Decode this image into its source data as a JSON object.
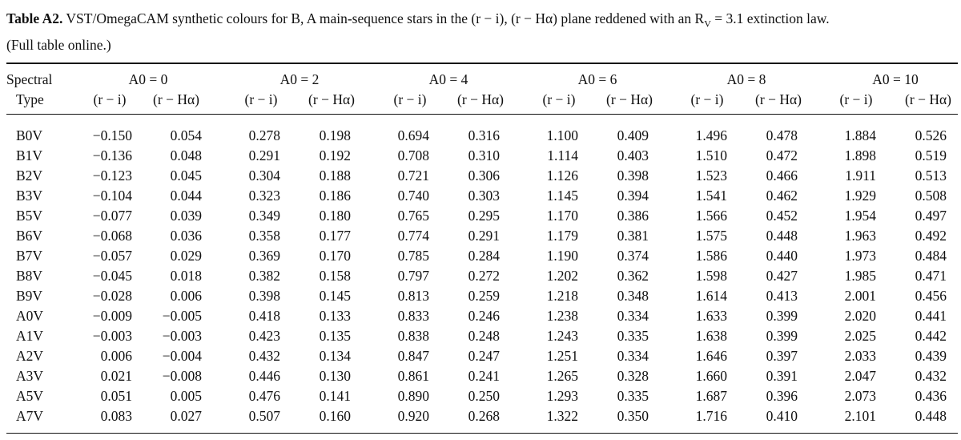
{
  "caption": {
    "label": "Table A2.",
    "text_line1": "VST/OmegaCAM synthetic colours for B, A main-sequence stars in the (r − i), (r − Hα) plane reddened with an R",
    "text_sub": "V",
    "text_line1_end": " = 3.1 extinction law.",
    "text_line2": "(Full table online.)"
  },
  "header": {
    "spectral": "Spectral",
    "type": "Type",
    "groups": [
      "A0 = 0",
      "A0 = 2",
      "A0 = 4",
      "A0 = 6",
      "A0 = 8",
      "A0 = 10"
    ],
    "subcols": [
      "(r − i)",
      "(r − Hα)"
    ]
  },
  "table": {
    "rows": [
      {
        "type": "B0V",
        "values": [
          "−0.150",
          "0.054",
          "0.278",
          "0.198",
          "0.694",
          "0.316",
          "1.100",
          "0.409",
          "1.496",
          "0.478",
          "1.884",
          "0.526"
        ]
      },
      {
        "type": "B1V",
        "values": [
          "−0.136",
          "0.048",
          "0.291",
          "0.192",
          "0.708",
          "0.310",
          "1.114",
          "0.403",
          "1.510",
          "0.472",
          "1.898",
          "0.519"
        ]
      },
      {
        "type": "B2V",
        "values": [
          "−0.123",
          "0.045",
          "0.304",
          "0.188",
          "0.721",
          "0.306",
          "1.126",
          "0.398",
          "1.523",
          "0.466",
          "1.911",
          "0.513"
        ]
      },
      {
        "type": "B3V",
        "values": [
          "−0.104",
          "0.044",
          "0.323",
          "0.186",
          "0.740",
          "0.303",
          "1.145",
          "0.394",
          "1.541",
          "0.462",
          "1.929",
          "0.508"
        ]
      },
      {
        "type": "B5V",
        "values": [
          "−0.077",
          "0.039",
          "0.349",
          "0.180",
          "0.765",
          "0.295",
          "1.170",
          "0.386",
          "1.566",
          "0.452",
          "1.954",
          "0.497"
        ]
      },
      {
        "type": "B6V",
        "values": [
          "−0.068",
          "0.036",
          "0.358",
          "0.177",
          "0.774",
          "0.291",
          "1.179",
          "0.381",
          "1.575",
          "0.448",
          "1.963",
          "0.492"
        ]
      },
      {
        "type": "B7V",
        "values": [
          "−0.057",
          "0.029",
          "0.369",
          "0.170",
          "0.785",
          "0.284",
          "1.190",
          "0.374",
          "1.586",
          "0.440",
          "1.973",
          "0.484"
        ]
      },
      {
        "type": "B8V",
        "values": [
          "−0.045",
          "0.018",
          "0.382",
          "0.158",
          "0.797",
          "0.272",
          "1.202",
          "0.362",
          "1.598",
          "0.427",
          "1.985",
          "0.471"
        ]
      },
      {
        "type": "B9V",
        "values": [
          "−0.028",
          "0.006",
          "0.398",
          "0.145",
          "0.813",
          "0.259",
          "1.218",
          "0.348",
          "1.614",
          "0.413",
          "2.001",
          "0.456"
        ]
      },
      {
        "type": "A0V",
        "values": [
          "−0.009",
          "−0.005",
          "0.418",
          "0.133",
          "0.833",
          "0.246",
          "1.238",
          "0.334",
          "1.633",
          "0.399",
          "2.020",
          "0.441"
        ]
      },
      {
        "type": "A1V",
        "values": [
          "−0.003",
          "−0.003",
          "0.423",
          "0.135",
          "0.838",
          "0.248",
          "1.243",
          "0.335",
          "1.638",
          "0.399",
          "2.025",
          "0.442"
        ]
      },
      {
        "type": "A2V",
        "values": [
          "0.006",
          "−0.004",
          "0.432",
          "0.134",
          "0.847",
          "0.247",
          "1.251",
          "0.334",
          "1.646",
          "0.397",
          "2.033",
          "0.439"
        ]
      },
      {
        "type": "A3V",
        "values": [
          "0.021",
          "−0.008",
          "0.446",
          "0.130",
          "0.861",
          "0.241",
          "1.265",
          "0.328",
          "1.660",
          "0.391",
          "2.047",
          "0.432"
        ]
      },
      {
        "type": "A5V",
        "values": [
          "0.051",
          "0.005",
          "0.476",
          "0.141",
          "0.890",
          "0.250",
          "1.293",
          "0.335",
          "1.687",
          "0.396",
          "2.073",
          "0.436"
        ]
      },
      {
        "type": "A7V",
        "values": [
          "0.083",
          "0.027",
          "0.507",
          "0.160",
          "0.920",
          "0.268",
          "1.322",
          "0.350",
          "1.716",
          "0.410",
          "2.101",
          "0.448"
        ]
      }
    ]
  }
}
